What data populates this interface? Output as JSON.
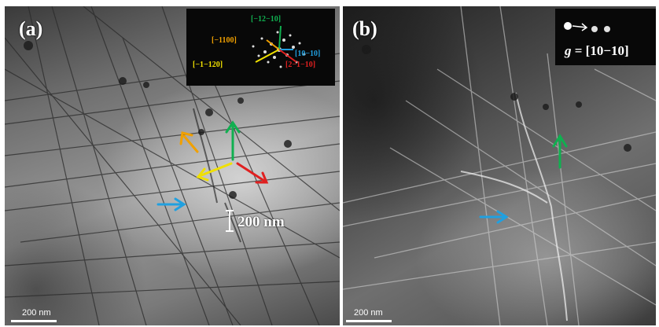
{
  "figure": {
    "panels": [
      {
        "label": "(a)",
        "scale_bar_text": "200 nm",
        "inset_scale_text": "200 nm",
        "diffraction_labels": {
          "green": "[−12−10]",
          "orange": "[−1100]",
          "yellow": "[−1−120]",
          "blue": "[10−10]",
          "red": "[2−1−10]"
        }
      },
      {
        "label": "(b)",
        "scale_bar_text": "200 nm",
        "g_prefix": "g",
        "g_vector": " = [10−10]"
      }
    ]
  },
  "colors": {
    "green": "#10b050",
    "orange": "#f0a000",
    "yellow": "#f0e000",
    "blue": "#20a0e0",
    "red": "#e02020"
  }
}
